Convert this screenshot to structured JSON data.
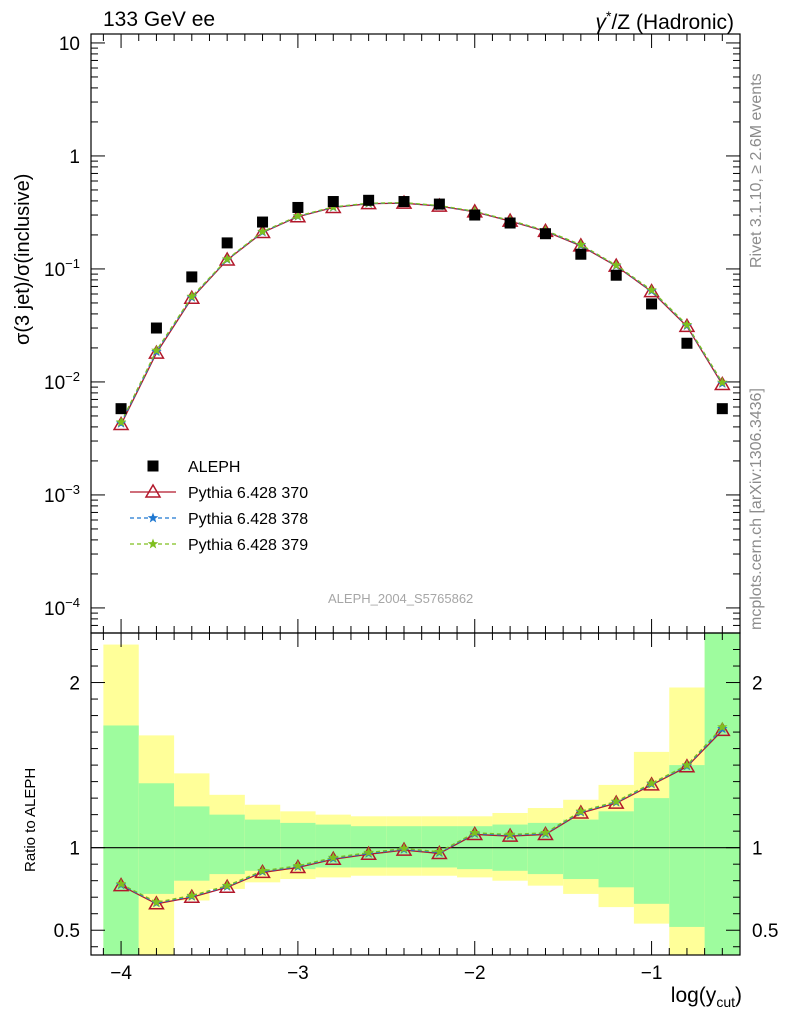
{
  "header": {
    "left": "133 GeV ee",
    "right_prefix": "γ",
    "right_sup": "*",
    "right_suffix": "/Z (Hadronic)"
  },
  "side_labels": {
    "rivet": "Rivet 3.1.10, ≥ 2.6M events",
    "mcplots": "mcplots.cern.ch [arXiv:1306.3436]"
  },
  "analysis_id": "ALEPH_2004_S5765862",
  "colors": {
    "data": "#000000",
    "pythia370": "#b2182b",
    "pythia378": "#1f78d1",
    "pythia379": "#7fbf1f",
    "band_inner": "#9efc9e",
    "band_outer": "#ffff99"
  },
  "chart_data": {
    "type": "scatter",
    "main": {
      "ylabel": "σ(3 jet)/σ(inclusive)",
      "yscale": "log",
      "ylim": [
        6e-05,
        12
      ],
      "yticks": [
        {
          "v": 0.0001,
          "m": "10",
          "e": "−4"
        },
        {
          "v": 0.001,
          "m": "10",
          "e": "−3"
        },
        {
          "v": 0.01,
          "m": "10",
          "e": "−2"
        },
        {
          "v": 0.1,
          "m": "10",
          "e": "−1"
        },
        {
          "v": 1,
          "m": "1",
          "e": ""
        },
        {
          "v": 10,
          "m": "10",
          "e": ""
        }
      ]
    },
    "ratio": {
      "ylabel": "Ratio to ALEPH",
      "ylim": [
        0.35,
        2.3
      ],
      "yticks": [
        {
          "v": 0.5,
          "label": "0.5"
        },
        {
          "v": 1,
          "label": "1"
        },
        {
          "v": 2,
          "label": "2"
        }
      ],
      "reference": 1
    },
    "x": {
      "label_main": "log(y",
      "label_sub": "cut",
      "label_close": ")",
      "xlim": [
        -4.17,
        -0.5
      ],
      "ticks": [
        {
          "v": -4,
          "label": "−4"
        },
        {
          "v": -3,
          "label": "−3"
        },
        {
          "v": -2,
          "label": "−2"
        },
        {
          "v": -1,
          "label": "−1"
        }
      ]
    },
    "x_values": [
      -4.0,
      -3.8,
      -3.6,
      -3.4,
      -3.2,
      -3.0,
      -2.8,
      -2.6,
      -2.4,
      -2.2,
      -2.0,
      -1.8,
      -1.6,
      -1.4,
      -1.2,
      -1.0,
      -0.8,
      -0.6
    ],
    "bin_edges": [
      -4.1,
      -3.9,
      -3.7,
      -3.5,
      -3.3,
      -3.1,
      -2.9,
      -2.7,
      -2.5,
      -2.3,
      -2.1,
      -1.9,
      -1.7,
      -1.5,
      -1.3,
      -1.1,
      -0.9,
      -0.7,
      -0.5
    ],
    "series": [
      {
        "name": "ALEPH",
        "marker": "square",
        "values": [
          0.0058,
          0.03,
          0.085,
          0.17,
          0.26,
          0.35,
          0.395,
          0.405,
          0.395,
          0.375,
          0.3,
          0.255,
          0.205,
          0.135,
          0.088,
          0.049,
          0.022,
          0.0058
        ]
      },
      {
        "name": "Pythia 6.428 370",
        "marker": "triangle",
        "line": "solid",
        "values": [
          0.0042,
          0.018,
          0.055,
          0.12,
          0.21,
          0.29,
          0.35,
          0.378,
          0.382,
          0.36,
          0.32,
          0.265,
          0.215,
          0.16,
          0.106,
          0.063,
          0.031,
          0.0095
        ],
        "ratio": [
          0.77,
          0.66,
          0.7,
          0.76,
          0.85,
          0.88,
          0.93,
          0.96,
          0.985,
          0.965,
          1.08,
          1.07,
          1.08,
          1.21,
          1.27,
          1.38,
          1.49,
          1.71
        ]
      },
      {
        "name": "Pythia 6.428 378",
        "marker": "star",
        "line": "dashed",
        "values": [
          0.0043,
          0.0185,
          0.056,
          0.121,
          0.212,
          0.292,
          0.352,
          0.38,
          0.384,
          0.362,
          0.322,
          0.267,
          0.217,
          0.162,
          0.107,
          0.064,
          0.0315,
          0.0097
        ],
        "ratio": [
          0.775,
          0.665,
          0.705,
          0.765,
          0.855,
          0.885,
          0.935,
          0.965,
          0.99,
          0.97,
          1.085,
          1.075,
          1.085,
          1.215,
          1.275,
          1.385,
          1.495,
          1.72
        ]
      },
      {
        "name": "Pythia 6.428 379",
        "marker": "star",
        "line": "dashed",
        "values": [
          0.0044,
          0.019,
          0.057,
          0.122,
          0.214,
          0.294,
          0.354,
          0.382,
          0.386,
          0.364,
          0.324,
          0.269,
          0.219,
          0.164,
          0.108,
          0.065,
          0.032,
          0.0099
        ],
        "ratio": [
          0.78,
          0.67,
          0.71,
          0.77,
          0.86,
          0.89,
          0.94,
          0.97,
          0.995,
          0.975,
          1.09,
          1.08,
          1.09,
          1.22,
          1.28,
          1.39,
          1.5,
          1.73
        ]
      }
    ],
    "bands": {
      "inner": [
        [
          0.35,
          1.74
        ],
        [
          0.35,
          1.39
        ],
        [
          0.35,
          1.25
        ],
        [
          0.35,
          1.2
        ],
        [
          0.35,
          1.17
        ],
        [
          0.35,
          1.15
        ],
        [
          0.35,
          1.14
        ],
        [
          0.35,
          1.13
        ],
        [
          0.35,
          1.13
        ],
        [
          0.35,
          1.13
        ],
        [
          0.35,
          1.13
        ],
        [
          0.35,
          1.14
        ],
        [
          0.35,
          1.15
        ],
        [
          0.35,
          1.17
        ],
        [
          0.35,
          1.22
        ],
        [
          0.35,
          1.3
        ],
        [
          0.35,
          1.5
        ],
        [
          0.35,
          2.3
        ]
      ],
      "outer": [
        [
          0.35,
          2.23
        ],
        [
          0.35,
          1.68
        ],
        [
          0.35,
          1.45
        ],
        [
          0.35,
          1.32
        ],
        [
          0.35,
          1.26
        ],
        [
          0.35,
          1.22
        ],
        [
          0.35,
          1.2
        ],
        [
          0.35,
          1.19
        ],
        [
          0.35,
          1.19
        ],
        [
          0.35,
          1.19
        ],
        [
          0.35,
          1.19
        ],
        [
          0.35,
          1.21
        ],
        [
          0.35,
          1.24
        ],
        [
          0.35,
          1.29
        ],
        [
          0.35,
          1.38
        ],
        [
          0.35,
          1.58
        ],
        [
          0.35,
          1.97
        ],
        [
          0.35,
          2.3
        ]
      ],
      "inner_low": [
        0.35,
        0.72,
        0.8,
        0.84,
        0.86,
        0.87,
        0.88,
        0.88,
        0.88,
        0.88,
        0.87,
        0.86,
        0.84,
        0.81,
        0.76,
        0.66,
        0.52,
        0.35
      ],
      "outer_low": [
        0.35,
        0.35,
        0.68,
        0.75,
        0.79,
        0.81,
        0.82,
        0.83,
        0.83,
        0.83,
        0.82,
        0.8,
        0.77,
        0.72,
        0.64,
        0.54,
        0.35,
        0.35
      ]
    },
    "legend": {
      "position": "lower-left",
      "entries": [
        {
          "label": "ALEPH"
        },
        {
          "label": "Pythia 6.428 370"
        },
        {
          "label": "Pythia 6.428 378"
        },
        {
          "label": "Pythia 6.428 379"
        }
      ]
    }
  }
}
